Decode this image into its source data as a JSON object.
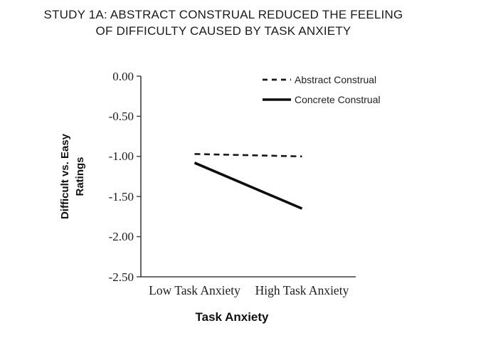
{
  "title": {
    "line1": "STUDY 1A: ABSTRACT CONSTRUAL REDUCED THE FEELING",
    "line2": "OF DIFFICULTY CAUSED BY TASK ANXIETY"
  },
  "chart_data": {
    "type": "line",
    "title": "STUDY 1A: ABSTRACT CONSTRUAL REDUCED THE FEELING OF DIFFICULTY CAUSED BY TASK ANXIETY",
    "categories": [
      "Low Task Anxiety",
      "High Task Anxiety"
    ],
    "series": [
      {
        "name": "Abstract Construal",
        "values": [
          -0.97,
          -1.0
        ],
        "line_style": "dashed",
        "color": "#1a1a1a"
      },
      {
        "name": "Concrete Construal",
        "values": [
          -1.08,
          -1.65
        ],
        "line_style": "solid",
        "color": "#0d0d0d"
      }
    ],
    "xlabel": "Task Anxiety",
    "ylabel": "Difficult vs. Easy Ratings",
    "ylabel_lines": [
      "Difficult vs. Easy",
      "Ratings"
    ],
    "ylim": [
      -2.5,
      0.0
    ],
    "yticks": [
      0.0,
      -0.5,
      -1.0,
      -1.5,
      -2.0,
      -2.5
    ],
    "ytick_labels": [
      "0.00",
      "-0.50",
      "-1.00",
      "-1.50",
      "-2.00",
      "-2.50"
    ],
    "grid": false,
    "legend_position": "top-right-inside",
    "axis_color": "#3f3f3f"
  }
}
